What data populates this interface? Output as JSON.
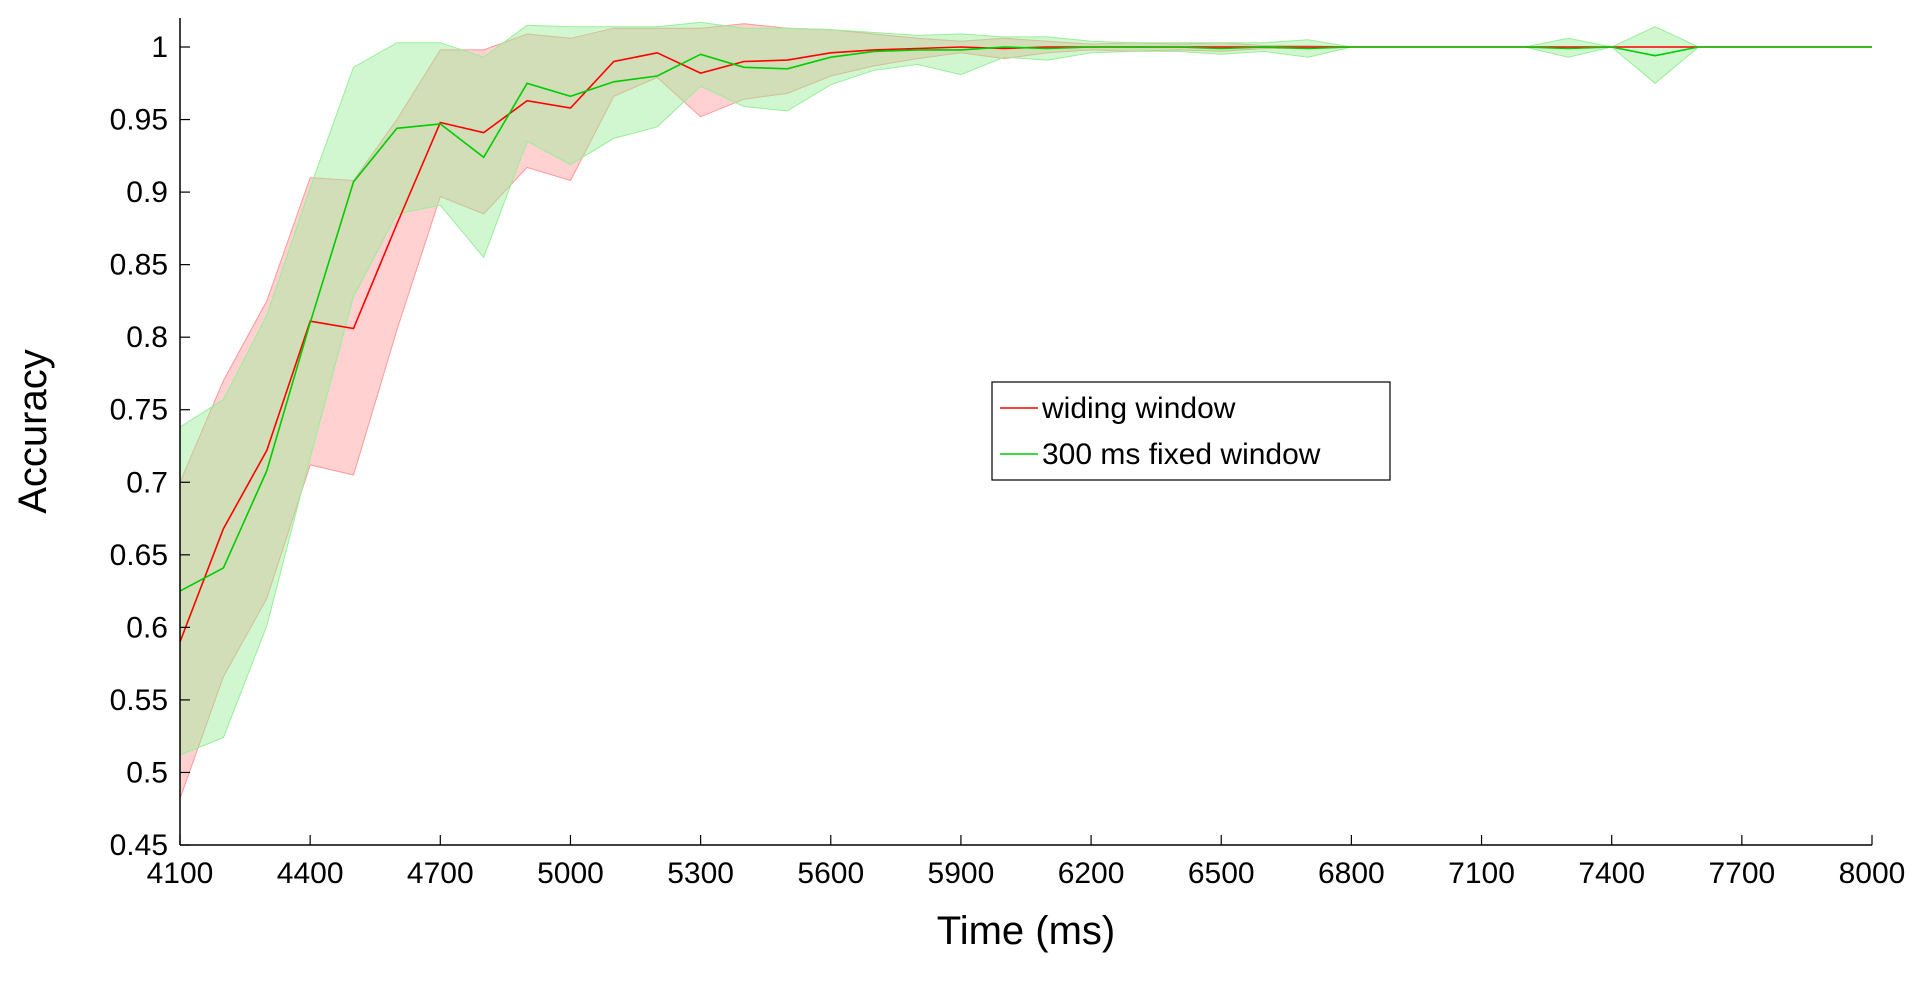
{
  "chart_data": {
    "type": "line",
    "title": "",
    "xlabel": "Time (ms)",
    "ylabel": "Accuracy",
    "xlim": [
      4100,
      8000
    ],
    "ylim": [
      0.45,
      1.02
    ],
    "x_ticks": [
      4100,
      4400,
      4700,
      5000,
      5300,
      5600,
      5900,
      6200,
      6500,
      6800,
      7100,
      7400,
      7700,
      8000
    ],
    "x_tick_labels": [
      "4100",
      "4400",
      "4700",
      "5000",
      "5300",
      "5600",
      "5900",
      "6200",
      "6500",
      "6800",
      "7100",
      "7400",
      "7700",
      "8000"
    ],
    "y_ticks": [
      0.45,
      0.5,
      0.55,
      0.6,
      0.65,
      0.7,
      0.75,
      0.8,
      0.85,
      0.9,
      0.95,
      1
    ],
    "y_tick_labels": [
      "0.45",
      "0.5",
      "0.55",
      "0.6",
      "0.65",
      "0.7",
      "0.75",
      "0.8",
      "0.85",
      "0.9",
      "0.95",
      "1"
    ],
    "grid": false,
    "legend_position": "center-right",
    "x": [
      4100,
      4200,
      4300,
      4400,
      4500,
      4600,
      4700,
      4800,
      4900,
      5000,
      5100,
      5200,
      5300,
      5400,
      5500,
      5600,
      5700,
      5800,
      5900,
      6000,
      6100,
      6200,
      6300,
      6400,
      6500,
      6600,
      6700,
      6800,
      6900,
      7000,
      7100,
      7200,
      7300,
      7400,
      7500,
      7600,
      7700,
      7800,
      7900,
      8000
    ],
    "series": [
      {
        "name": "widing window",
        "color": "#ff0000",
        "fill_color": "#ff9999",
        "values": [
          0.59,
          0.668,
          0.722,
          0.811,
          0.806,
          0.878,
          0.948,
          0.941,
          0.963,
          0.958,
          0.99,
          0.996,
          0.982,
          0.99,
          0.991,
          0.996,
          0.998,
          0.999,
          1.0,
          0.999,
          1.0,
          1.0,
          1.0,
          1.0,
          1.0,
          1.0,
          1.0,
          1.0,
          1.0,
          1.0,
          1.0,
          1.0,
          1.0,
          1.0,
          1.0,
          1.0,
          1.0,
          1.0,
          1.0,
          1.0
        ],
        "upper": [
          0.7,
          0.77,
          0.825,
          0.91,
          0.908,
          0.95,
          0.998,
          0.998,
          1.009,
          1.006,
          1.013,
          1.013,
          1.013,
          1.016,
          1.013,
          1.012,
          1.009,
          1.006,
          1.004,
          1.006,
          1.004,
          1.002,
          1.003,
          1.002,
          1.003,
          1.001,
          1.001,
          1.0,
          1.0,
          1.0,
          1.0,
          1.0,
          1.0,
          1.0,
          1.0,
          1.0,
          1.0,
          1.0,
          1.0,
          1.0
        ],
        "lower": [
          0.482,
          0.566,
          0.62,
          0.712,
          0.705,
          0.805,
          0.897,
          0.885,
          0.917,
          0.908,
          0.966,
          0.979,
          0.952,
          0.964,
          0.968,
          0.98,
          0.987,
          0.992,
          0.996,
          0.992,
          0.996,
          0.998,
          0.997,
          0.998,
          0.997,
          0.999,
          0.999,
          1.0,
          1.0,
          1.0,
          1.0,
          1.0,
          1.0,
          1.0,
          1.0,
          1.0,
          1.0,
          1.0,
          1.0,
          1.0
        ]
      },
      {
        "name": "300 ms fixed window",
        "color": "#00cc00",
        "fill_color": "#99ee99",
        "values": [
          0.625,
          0.641,
          0.708,
          0.81,
          0.907,
          0.944,
          0.947,
          0.924,
          0.975,
          0.966,
          0.976,
          0.98,
          0.995,
          0.986,
          0.985,
          0.993,
          0.997,
          0.998,
          0.998,
          1.0,
          0.999,
          1.0,
          1.0,
          1.0,
          0.999,
          1.0,
          0.999,
          1.0,
          1.0,
          1.0,
          1.0,
          1.0,
          0.999,
          1.0,
          0.994,
          1.0,
          1.0,
          1.0,
          1.0,
          1.0
        ],
        "upper": [
          0.738,
          0.757,
          0.815,
          0.903,
          0.986,
          1.003,
          1.003,
          0.993,
          1.015,
          1.014,
          1.014,
          1.014,
          1.017,
          1.013,
          1.013,
          1.012,
          1.01,
          1.008,
          1.009,
          1.007,
          1.007,
          1.004,
          1.003,
          1.003,
          1.003,
          1.003,
          1.005,
          1.0,
          1.0,
          1.0,
          1.0,
          1.0,
          1.006,
          1.0,
          1.014,
          1.0,
          1.0,
          1.0,
          1.0,
          1.0
        ],
        "lower": [
          0.512,
          0.524,
          0.601,
          0.717,
          0.828,
          0.885,
          0.891,
          0.855,
          0.935,
          0.919,
          0.937,
          0.945,
          0.973,
          0.959,
          0.956,
          0.974,
          0.984,
          0.988,
          0.981,
          0.993,
          0.991,
          0.996,
          0.997,
          0.997,
          0.995,
          0.997,
          0.993,
          1.0,
          1.0,
          1.0,
          1.0,
          1.0,
          0.993,
          1.0,
          0.975,
          1.0,
          1.0,
          1.0,
          1.0,
          1.0
        ]
      }
    ]
  }
}
